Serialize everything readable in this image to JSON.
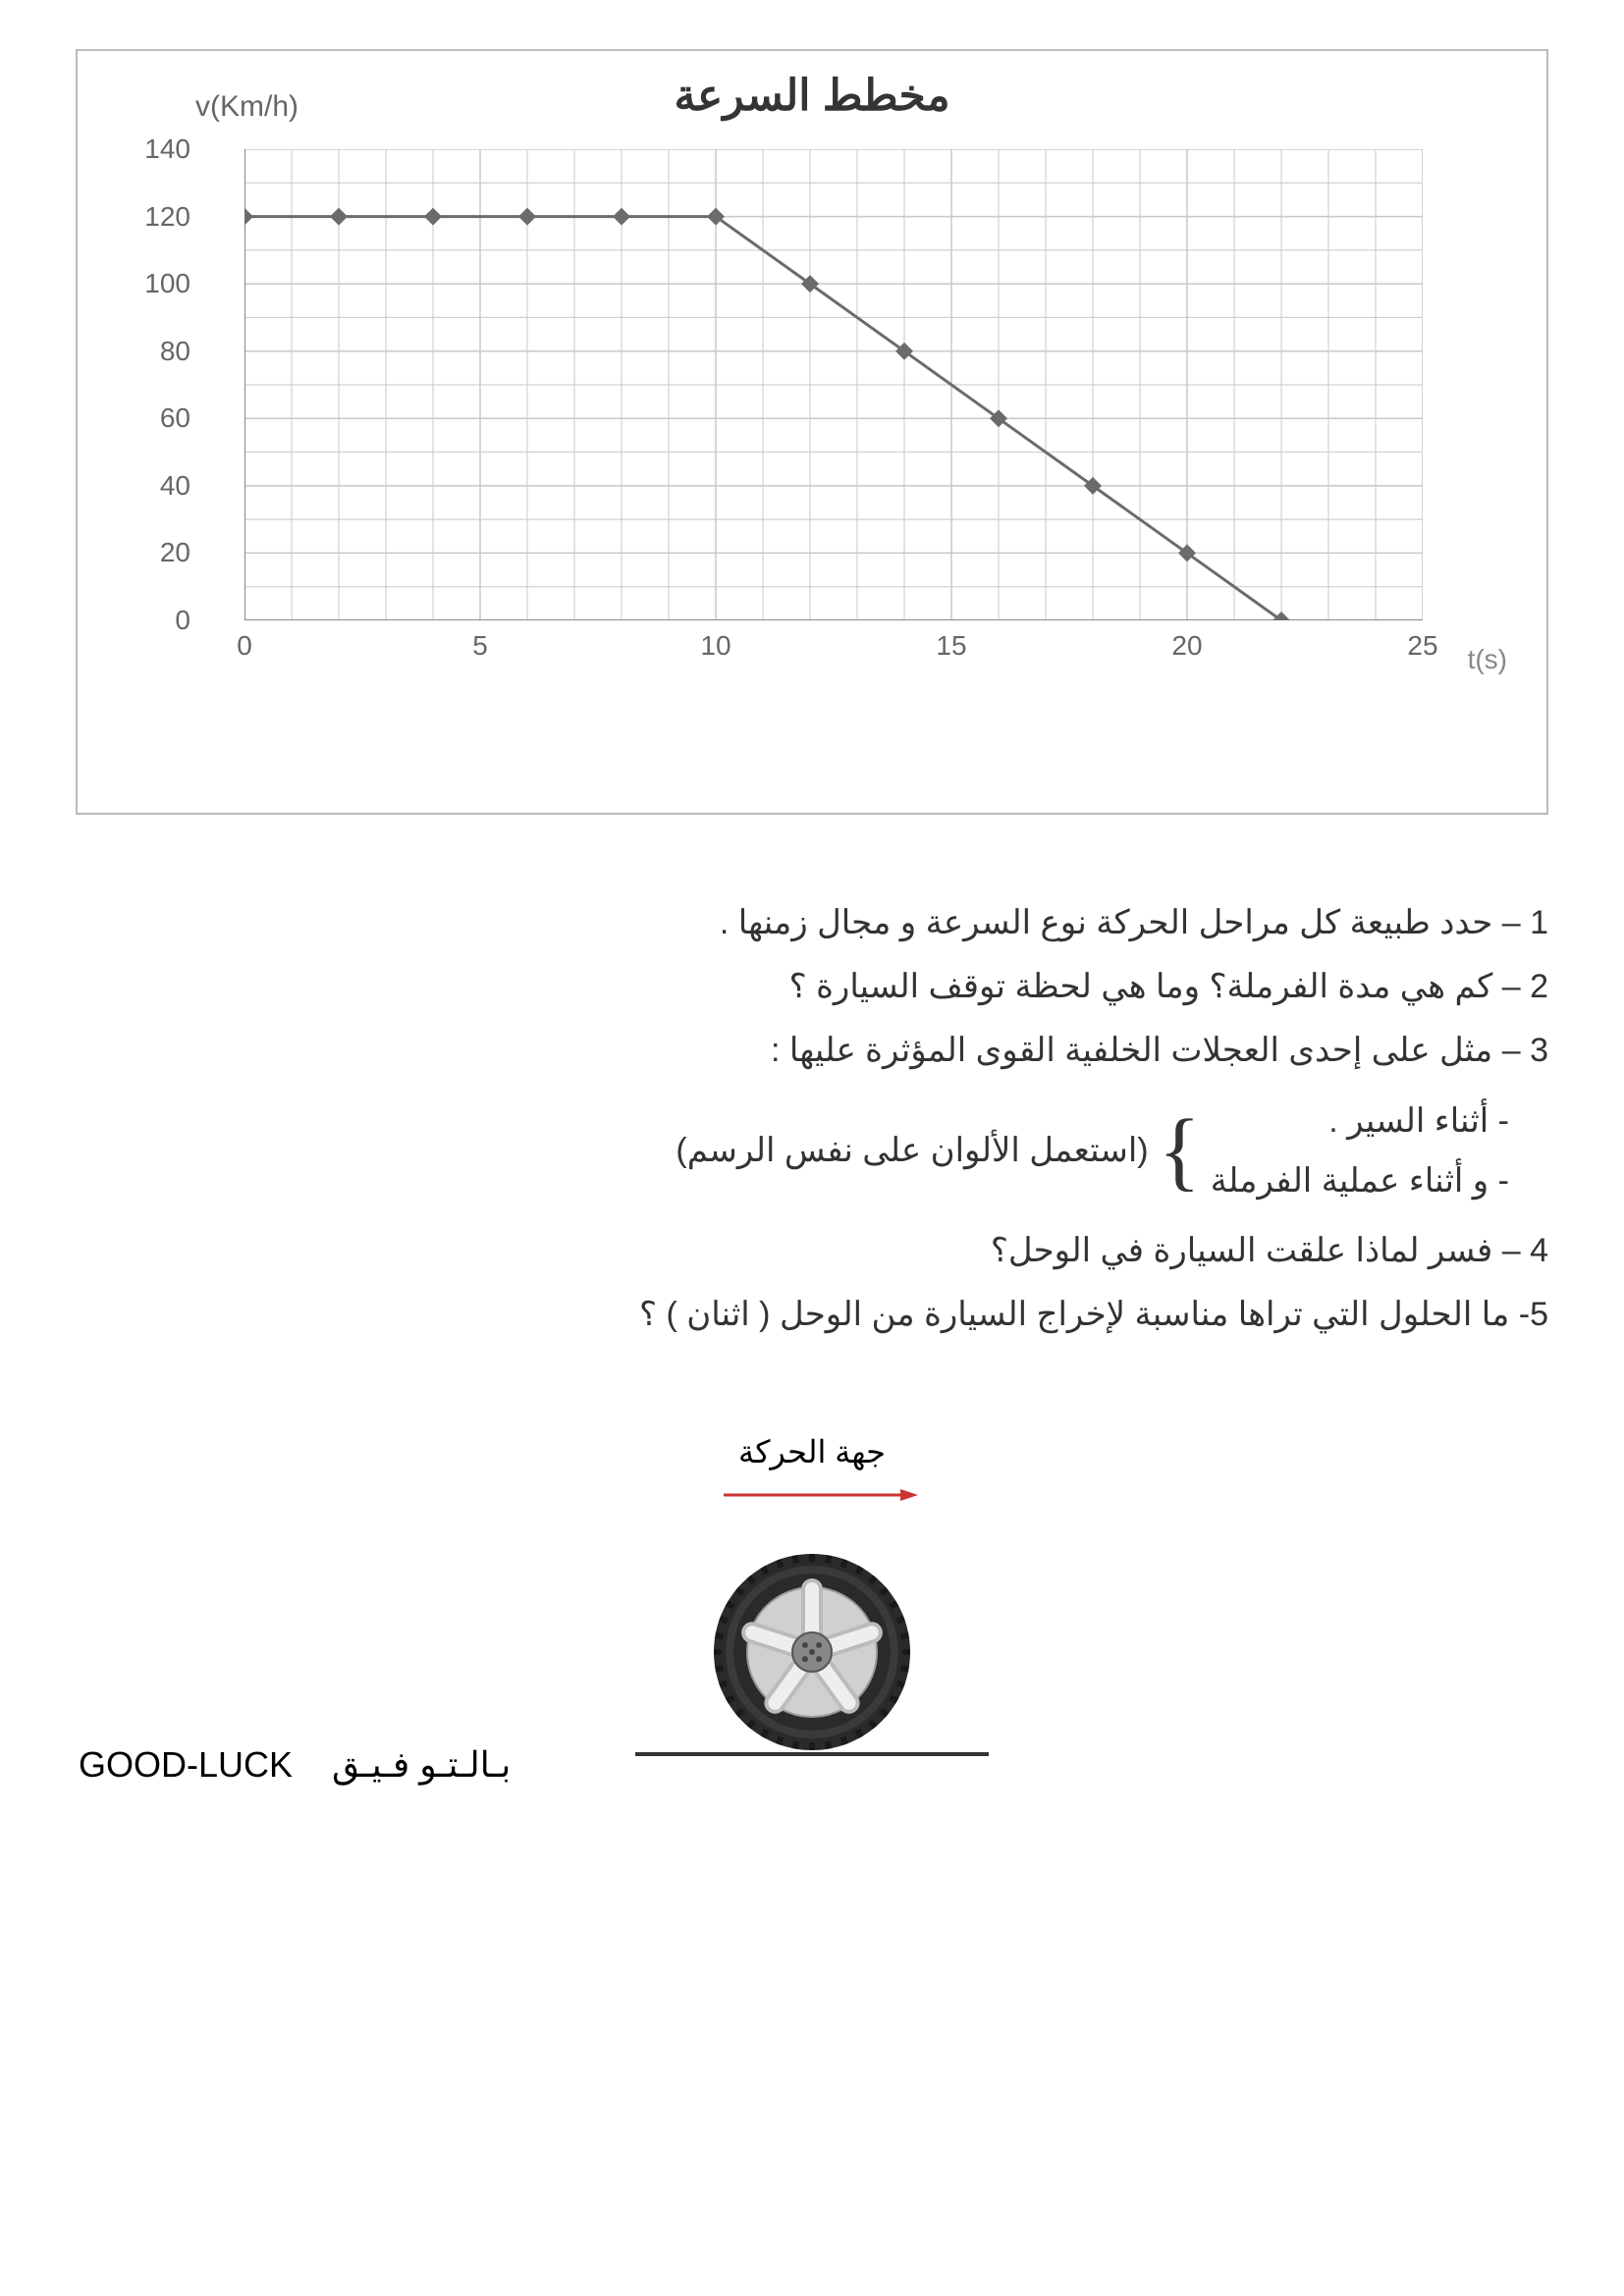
{
  "chart": {
    "title": "مخطط السرعة",
    "y_axis_label": "v(Km/h)",
    "x_axis_label": "t(s)",
    "xlim": [
      0,
      25
    ],
    "ylim": [
      0,
      140
    ],
    "x_ticks": [
      0,
      5,
      10,
      15,
      20,
      25
    ],
    "y_ticks": [
      0,
      20,
      40,
      60,
      80,
      100,
      120,
      140
    ],
    "x_minor_step": 1,
    "y_minor_step": 10,
    "grid_color": "#c8c8c8",
    "axis_color": "#888888",
    "background_color": "#ffffff",
    "line_color": "#6b6b6b",
    "marker_color": "#6b6b6b",
    "line_width": 3,
    "marker_size": 9,
    "boundary_color": "#bcbcc0",
    "type": "line",
    "data_points": [
      {
        "t": 0,
        "v": 120
      },
      {
        "t": 2,
        "v": 120
      },
      {
        "t": 4,
        "v": 120
      },
      {
        "t": 6,
        "v": 120
      },
      {
        "t": 8,
        "v": 120
      },
      {
        "t": 10,
        "v": 120
      },
      {
        "t": 12,
        "v": 100
      },
      {
        "t": 14,
        "v": 80
      },
      {
        "t": 16,
        "v": 60
      },
      {
        "t": 18,
        "v": 40
      },
      {
        "t": 20,
        "v": 20
      },
      {
        "t": 22,
        "v": 0
      }
    ]
  },
  "questions": {
    "q1": "1 – حدد طبيعة كل مراحل الحركة نوع السرعة  و مجال زمنها .",
    "q2": "2  – كم هي مدة الفرملة؟  وما هي  لحظة توقف السيارة ؟",
    "q3": "3 – مثل على إحدى العجلات الخلفية القوى المؤثرة عليها :",
    "q3_sub1": "-   أثناء السير .",
    "q3_sub2": "-   و أثناء عملية الفرملة",
    "q3_note": "(استعمل الألوان على نفس الرسم)",
    "q4": "4 – فسر لماذا علقت السيارة في الوحل؟",
    "q5": "5- ما الحلول التي تراها مناسبة لإخراج السيارة من الوحل ( اثنان ) ؟"
  },
  "diagram": {
    "direction_label": "جهة الحركة",
    "arrow_color": "#cc3333",
    "ground_color": "#333333",
    "tire_outer_color": "#2a2a2a",
    "tire_tread_color": "#1a1a1a",
    "rim_color": "#d0d0d0",
    "hub_color": "#888888"
  },
  "footer": {
    "text_ar": "بـالـتـو فـيـق",
    "text_en": "GOOD-LUCK"
  }
}
